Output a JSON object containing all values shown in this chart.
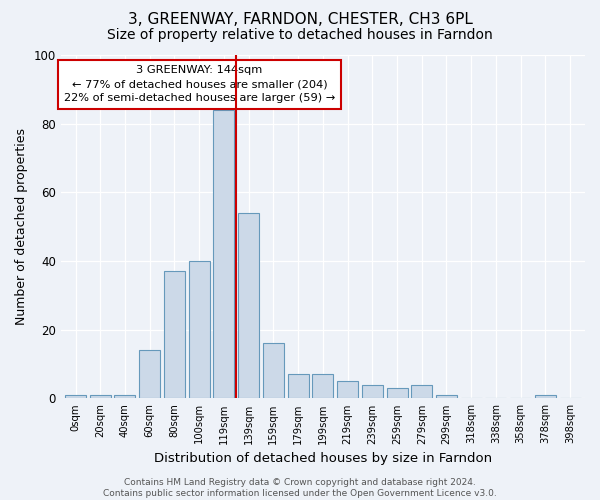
{
  "title1": "3, GREENWAY, FARNDON, CHESTER, CH3 6PL",
  "title2": "Size of property relative to detached houses in Farndon",
  "xlabel": "Distribution of detached houses by size in Farndon",
  "ylabel": "Number of detached properties",
  "bar_labels": [
    "0sqm",
    "20sqm",
    "40sqm",
    "60sqm",
    "80sqm",
    "100sqm",
    "119sqm",
    "139sqm",
    "159sqm",
    "179sqm",
    "199sqm",
    "219sqm",
    "239sqm",
    "259sqm",
    "279sqm",
    "299sqm",
    "318sqm",
    "338sqm",
    "358sqm",
    "378sqm",
    "398sqm"
  ],
  "bar_values": [
    1,
    1,
    1,
    14,
    37,
    40,
    84,
    54,
    16,
    7,
    7,
    5,
    4,
    3,
    4,
    1,
    0,
    0,
    0,
    1,
    0
  ],
  "bar_color": "#ccd9e8",
  "bar_edge_color": "#6699bb",
  "annotation_text": "3 GREENWAY: 144sqm\n← 77% of detached houses are smaller (204)\n22% of semi-detached houses are larger (59) →",
  "vline_index": 7,
  "vline_color": "#cc0000",
  "ylim": [
    0,
    100
  ],
  "yticks": [
    0,
    20,
    40,
    60,
    80,
    100
  ],
  "footnote": "Contains HM Land Registry data © Crown copyright and database right 2024.\nContains public sector information licensed under the Open Government Licence v3.0.",
  "background_color": "#eef2f8",
  "plot_bg_color": "#eef2f8",
  "annotation_box_color": "#ffffff",
  "annotation_box_edge_color": "#cc0000",
  "title_fontsize": 11,
  "subtitle_fontsize": 10
}
